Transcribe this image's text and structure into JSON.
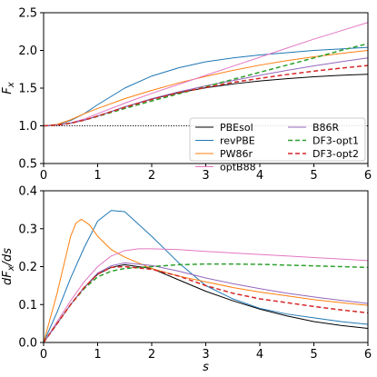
{
  "chart_data": [
    {
      "type": "line",
      "panel": "top",
      "ylabel": "F_x",
      "xlabel": "",
      "xlim": [
        0,
        6
      ],
      "ylim": [
        0.5,
        2.5
      ],
      "xticks": [
        0,
        1,
        2,
        3,
        4,
        5,
        6
      ],
      "yticks": [
        0.5,
        1.0,
        1.5,
        2.0,
        2.5
      ],
      "ytick_labels": [
        "0.5",
        "1.0",
        "1.5",
        "2.0",
        "2.5"
      ],
      "grid": false,
      "legend": {
        "placement": "lower-right",
        "columns": 2,
        "entries": [
          "PBEsol",
          "revPBE",
          "PW86r",
          "optB88",
          "B86R",
          "DF3-opt1",
          "DF3-opt2"
        ]
      },
      "reference_line": {
        "y": 1.0,
        "style": "dotted",
        "color": "#000000"
      },
      "series": [
        {
          "name": "PBEsol",
          "color": "#000000",
          "dash": "solid",
          "x": [
            0,
            0.25,
            0.5,
            0.75,
            1,
            1.5,
            2,
            2.5,
            3,
            3.5,
            4,
            4.5,
            5,
            5.5,
            6
          ],
          "y": [
            1,
            1.01,
            1.035,
            1.075,
            1.13,
            1.25,
            1.355,
            1.44,
            1.505,
            1.555,
            1.595,
            1.625,
            1.65,
            1.67,
            1.683
          ]
        },
        {
          "name": "revPBE",
          "color": "#1f77b4",
          "dash": "solid",
          "x": [
            0,
            0.25,
            0.5,
            0.75,
            1,
            1.5,
            2,
            2.5,
            3,
            3.5,
            4,
            4.5,
            5,
            5.5,
            6
          ],
          "y": [
            1,
            1.015,
            1.07,
            1.16,
            1.28,
            1.5,
            1.66,
            1.77,
            1.85,
            1.9,
            1.94,
            1.97,
            2.0,
            2.02,
            2.04
          ]
        },
        {
          "name": "PW86r",
          "color": "#ff7f0e",
          "dash": "solid",
          "x": [
            0,
            0.25,
            0.5,
            0.75,
            1,
            1.5,
            2,
            2.5,
            3,
            3.5,
            4,
            4.5,
            5,
            5.5,
            6
          ],
          "y": [
            1,
            1.02,
            1.08,
            1.16,
            1.23,
            1.36,
            1.47,
            1.57,
            1.655,
            1.735,
            1.805,
            1.865,
            1.915,
            1.96,
            2.0
          ]
        },
        {
          "name": "optB88",
          "color": "#e377c2",
          "dash": "solid",
          "x": [
            0,
            0.25,
            0.5,
            0.75,
            1,
            1.5,
            2,
            2.5,
            3,
            3.5,
            4,
            4.5,
            5,
            5.5,
            6
          ],
          "y": [
            1,
            1.01,
            1.04,
            1.09,
            1.16,
            1.3,
            1.43,
            1.55,
            1.67,
            1.79,
            1.91,
            2.03,
            2.15,
            2.26,
            2.37
          ]
        },
        {
          "name": "B86R",
          "color": "#9467bd",
          "dash": "solid",
          "x": [
            0,
            0.25,
            0.5,
            0.75,
            1,
            1.5,
            2,
            2.5,
            3,
            3.5,
            4,
            4.5,
            5,
            5.5,
            6
          ],
          "y": [
            1,
            1.01,
            1.035,
            1.075,
            1.13,
            1.25,
            1.36,
            1.45,
            1.53,
            1.6,
            1.67,
            1.735,
            1.795,
            1.85,
            1.9
          ]
        },
        {
          "name": "DF3-opt1",
          "color": "#2ca02c",
          "dash": "dashed",
          "x": [
            0,
            0.25,
            0.5,
            0.75,
            1,
            1.5,
            2,
            2.5,
            3,
            3.5,
            4,
            4.5,
            5,
            5.5,
            6
          ],
          "y": [
            1,
            1.01,
            1.035,
            1.075,
            1.125,
            1.23,
            1.33,
            1.425,
            1.52,
            1.615,
            1.71,
            1.805,
            1.9,
            2.0,
            2.09
          ]
        },
        {
          "name": "DF3-opt2",
          "color": "#d62728",
          "dash": "dashed",
          "x": [
            0,
            0.25,
            0.5,
            0.75,
            1,
            1.5,
            2,
            2.5,
            3,
            3.5,
            4,
            4.5,
            5,
            5.5,
            6
          ],
          "y": [
            1,
            1.01,
            1.035,
            1.075,
            1.13,
            1.245,
            1.35,
            1.44,
            1.51,
            1.575,
            1.63,
            1.68,
            1.725,
            1.765,
            1.8
          ]
        }
      ]
    },
    {
      "type": "line",
      "panel": "bottom",
      "ylabel": "dF_x/ds",
      "xlabel": "s",
      "xlim": [
        0,
        6
      ],
      "ylim": [
        0,
        0.4
      ],
      "xticks": [
        0,
        1,
        2,
        3,
        4,
        5,
        6
      ],
      "yticks": [
        0,
        0.1,
        0.2,
        0.3,
        0.4
      ],
      "ytick_labels": [
        "0.0",
        "0.1",
        "0.2",
        "0.3",
        "0.4"
      ],
      "grid": false,
      "series": [
        {
          "name": "PBEsol",
          "color": "#000000",
          "dash": "solid",
          "x": [
            0,
            0.25,
            0.5,
            0.75,
            1,
            1.25,
            1.5,
            2,
            2.5,
            3,
            3.5,
            4,
            4.5,
            5,
            5.5,
            6
          ],
          "y": [
            0,
            0.05,
            0.1,
            0.145,
            0.18,
            0.198,
            0.205,
            0.195,
            0.165,
            0.135,
            0.11,
            0.088,
            0.07,
            0.055,
            0.045,
            0.037
          ]
        },
        {
          "name": "revPBE",
          "color": "#1f77b4",
          "dash": "solid",
          "x": [
            0,
            0.25,
            0.5,
            0.75,
            1,
            1.25,
            1.5,
            2,
            2.5,
            3,
            3.5,
            4,
            4.5,
            5,
            5.5,
            6
          ],
          "y": [
            0,
            0.08,
            0.17,
            0.25,
            0.32,
            0.348,
            0.345,
            0.28,
            0.21,
            0.15,
            0.115,
            0.09,
            0.075,
            0.065,
            0.055,
            0.048
          ]
        },
        {
          "name": "PW86r",
          "color": "#ff7f0e",
          "dash": "solid",
          "x": [
            0,
            0.25,
            0.5,
            0.6,
            0.7,
            0.85,
            1,
            1.25,
            1.5,
            2,
            2.5,
            3,
            3.5,
            4,
            4.5,
            5,
            5.5,
            6
          ],
          "y": [
            0,
            0.13,
            0.28,
            0.315,
            0.325,
            0.31,
            0.28,
            0.245,
            0.225,
            0.195,
            0.175,
            0.16,
            0.145,
            0.133,
            0.123,
            0.113,
            0.105,
            0.098
          ]
        },
        {
          "name": "optB88",
          "color": "#e377c2",
          "dash": "solid",
          "x": [
            0,
            0.25,
            0.5,
            0.75,
            1,
            1.25,
            1.5,
            1.75,
            2,
            2.5,
            3,
            3.5,
            4,
            4.5,
            5,
            5.5,
            6
          ],
          "y": [
            0,
            0.055,
            0.11,
            0.16,
            0.2,
            0.228,
            0.242,
            0.247,
            0.247,
            0.245,
            0.24,
            0.236,
            0.232,
            0.228,
            0.224,
            0.22,
            0.216
          ]
        },
        {
          "name": "B86R",
          "color": "#9467bd",
          "dash": "solid",
          "x": [
            0,
            0.25,
            0.5,
            0.75,
            1,
            1.25,
            1.5,
            2,
            2.5,
            3,
            3.5,
            4,
            4.5,
            5,
            5.5,
            6
          ],
          "y": [
            0,
            0.05,
            0.1,
            0.145,
            0.183,
            0.202,
            0.21,
            0.203,
            0.188,
            0.17,
            0.155,
            0.142,
            0.13,
            0.12,
            0.111,
            0.103
          ]
        },
        {
          "name": "DF3-opt1",
          "color": "#2ca02c",
          "dash": "dashed",
          "x": [
            0,
            0.25,
            0.5,
            0.75,
            1,
            1.25,
            1.5,
            2,
            2.5,
            3,
            3.5,
            4,
            4.5,
            5,
            5.5,
            6
          ],
          "y": [
            0,
            0.05,
            0.1,
            0.142,
            0.173,
            0.188,
            0.195,
            0.2,
            0.205,
            0.207,
            0.207,
            0.206,
            0.204,
            0.202,
            0.2,
            0.198
          ]
        },
        {
          "name": "DF3-opt2",
          "color": "#d62728",
          "dash": "dashed",
          "x": [
            0,
            0.25,
            0.5,
            0.75,
            1,
            1.25,
            1.5,
            2,
            2.5,
            3,
            3.5,
            4,
            4.5,
            5,
            5.5,
            6
          ],
          "y": [
            0,
            0.05,
            0.1,
            0.145,
            0.18,
            0.198,
            0.2,
            0.193,
            0.175,
            0.15,
            0.13,
            0.115,
            0.105,
            0.095,
            0.086,
            0.078
          ]
        }
      ]
    }
  ]
}
